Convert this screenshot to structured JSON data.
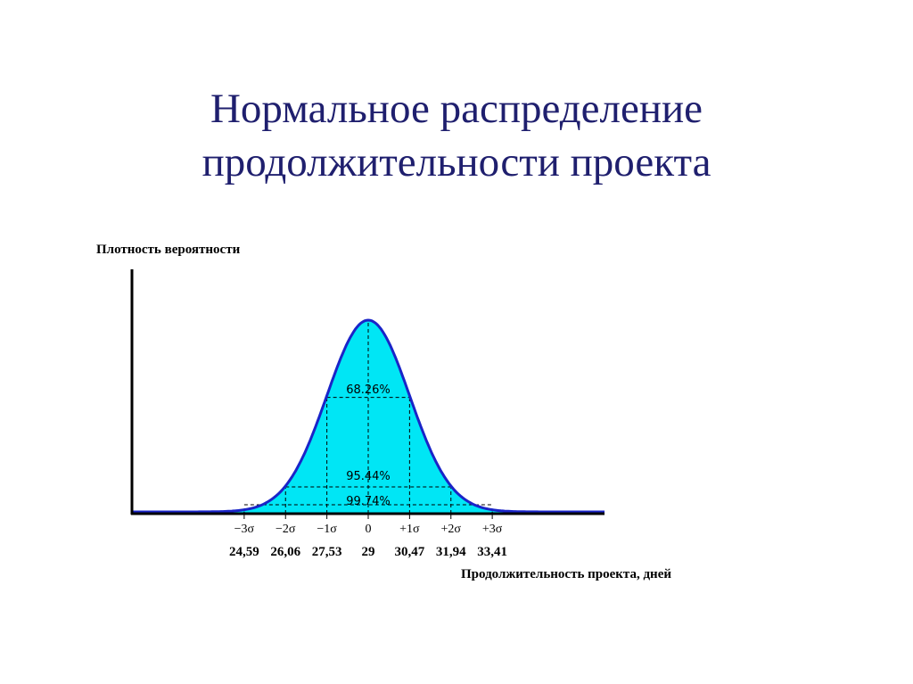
{
  "slide": {
    "title_line1": "Нормальное распределение",
    "title_line2": "продолжительности проекта"
  },
  "colors": {
    "fill": "#00e6f5",
    "curve": "#1a24c8",
    "axis": "#000000",
    "title": "#1f1f6e"
  },
  "chart_data": {
    "type": "area",
    "distribution": "normal",
    "mean": 29,
    "sigma": 1.47,
    "xlabel": "Продолжительность проекта, дней",
    "ylabel": "Плотность вероятности",
    "ticks": [
      {
        "sigma_label": "−3σ",
        "value_label": "24,59",
        "x": 24.59
      },
      {
        "sigma_label": "−2σ",
        "value_label": "26,06",
        "x": 26.06
      },
      {
        "sigma_label": "−1σ",
        "value_label": "27,53",
        "x": 27.53
      },
      {
        "sigma_label": "0",
        "value_label": "29",
        "x": 29
      },
      {
        "sigma_label": "+1σ",
        "value_label": "30,47",
        "x": 30.47
      },
      {
        "sigma_label": "+2σ",
        "value_label": "31,94",
        "x": 31.94
      },
      {
        "sigma_label": "+3σ",
        "value_label": "33,41",
        "x": 33.41
      }
    ],
    "intervals": [
      {
        "label": "68.26%",
        "from": 27.53,
        "to": 30.47
      },
      {
        "label": "95.44%",
        "from": 26.06,
        "to": 31.94
      },
      {
        "label": "99.74%",
        "from": 24.59,
        "to": 33.41
      }
    ],
    "xlim": [
      20.6,
      37.4
    ],
    "grid": false
  }
}
